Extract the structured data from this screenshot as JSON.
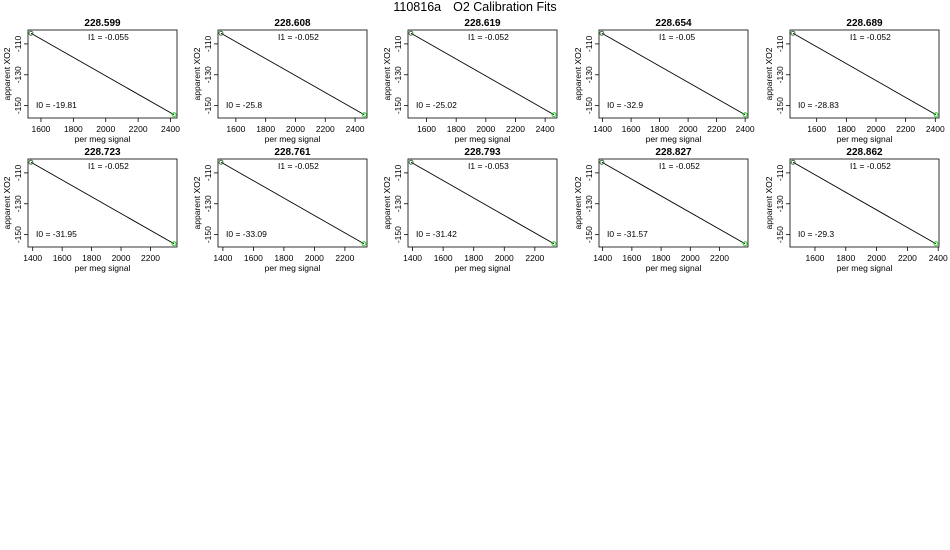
{
  "page": {
    "run_id": "110816a",
    "title": "O2 Calibration Fits"
  },
  "colors": {
    "fit_line": "#000000",
    "point_dark": "#2e6b2e",
    "point_green": "#22cc22",
    "frame": "#000000"
  },
  "chart_data": [
    {
      "type": "scatter",
      "title": "228.599",
      "xlabel": "per meg signal",
      "ylabel": "apparent XO2",
      "xlim": [
        1520,
        2440
      ],
      "ylim": [
        -158,
        -101
      ],
      "xticks": [
        1600,
        1800,
        2000,
        2200,
        2400
      ],
      "yticks": [
        -110,
        -130,
        -150
      ],
      "fit_label": "I1 =  -0.055",
      "intercept_label": "I0 =  -19.81",
      "x": [
        1538,
        2422
      ],
      "y": [
        -103.1,
        -155.9
      ],
      "point_colors": [
        "point_dark",
        "point_green"
      ]
    },
    {
      "type": "scatter",
      "title": "228.608",
      "xlabel": "per meg signal",
      "ylabel": "apparent XO2",
      "xlim": [
        1480,
        2480
      ],
      "ylim": [
        -158,
        -101
      ],
      "xticks": [
        1600,
        1800,
        2000,
        2200,
        2400
      ],
      "yticks": [
        -110,
        -130,
        -150
      ],
      "fit_label": "I1 =  -0.052",
      "intercept_label": "I0 =  -25.8",
      "x": [
        1500,
        2462
      ],
      "y": [
        -103.1,
        -155.9
      ],
      "point_colors": [
        "point_dark",
        "point_green"
      ]
    },
    {
      "type": "scatter",
      "title": "228.619",
      "xlabel": "per meg signal",
      "ylabel": "apparent XO2",
      "xlim": [
        1475,
        2480
      ],
      "ylim": [
        -158,
        -101
      ],
      "xticks": [
        1600,
        1800,
        2000,
        2200,
        2400
      ],
      "yticks": [
        -110,
        -130,
        -150
      ],
      "fit_label": "I1 =  -0.052",
      "intercept_label": "I0 =  -25.02",
      "x": [
        1495,
        2460
      ],
      "y": [
        -103.1,
        -155.9
      ],
      "point_colors": [
        "point_dark",
        "point_green"
      ]
    },
    {
      "type": "scatter",
      "title": "228.654",
      "xlabel": "per meg signal",
      "ylabel": "apparent XO2",
      "xlim": [
        1375,
        2420
      ],
      "ylim": [
        -158,
        -101
      ],
      "xticks": [
        1400,
        1600,
        1800,
        2000,
        2200,
        2400
      ],
      "yticks": [
        -110,
        -130,
        -150
      ],
      "fit_label": "I1 =  -0.05",
      "intercept_label": "I0 =  -32.9",
      "x": [
        1395,
        2400
      ],
      "y": [
        -103.1,
        -155.9
      ],
      "point_colors": [
        "point_dark",
        "point_green"
      ]
    },
    {
      "type": "scatter",
      "title": "228.689",
      "xlabel": "per meg signal",
      "ylabel": "apparent XO2",
      "xlim": [
        1420,
        2425
      ],
      "ylim": [
        -158,
        -101
      ],
      "xticks": [
        1600,
        1800,
        2000,
        2200,
        2400
      ],
      "yticks": [
        -110,
        -130,
        -150
      ],
      "fit_label": "I1 =  -0.052",
      "intercept_label": "I0 =  -28.83",
      "x": [
        1440,
        2405
      ],
      "y": [
        -103.1,
        -155.9
      ],
      "point_colors": [
        "point_dark",
        "point_green"
      ]
    },
    {
      "type": "scatter",
      "title": "228.723",
      "xlabel": "per meg signal",
      "ylabel": "apparent XO2",
      "xlim": [
        1368,
        2380
      ],
      "ylim": [
        -158,
        -101
      ],
      "xticks": [
        1400,
        1600,
        1800,
        2000,
        2200
      ],
      "yticks": [
        -110,
        -130,
        -150
      ],
      "fit_label": "I1 =  -0.052",
      "intercept_label": "I0 =  -31.95",
      "x": [
        1388,
        2360
      ],
      "y": [
        -103.1,
        -155.9
      ],
      "point_colors": [
        "point_dark",
        "point_green"
      ]
    },
    {
      "type": "scatter",
      "title": "228.761",
      "xlabel": "per meg signal",
      "ylabel": "apparent XO2",
      "xlim": [
        1368,
        2345
      ],
      "ylim": [
        -158,
        -101
      ],
      "xticks": [
        1400,
        1600,
        1800,
        2000,
        2200
      ],
      "yticks": [
        -110,
        -130,
        -150
      ],
      "fit_label": "I1 =  -0.052",
      "intercept_label": "I0 =  -33.09",
      "x": [
        1388,
        2325
      ],
      "y": [
        -103.1,
        -155.9
      ],
      "point_colors": [
        "point_dark",
        "point_green"
      ]
    },
    {
      "type": "scatter",
      "title": "228.793",
      "xlabel": "per meg signal",
      "ylabel": "apparent XO2",
      "xlim": [
        1370,
        2345
      ],
      "ylim": [
        -158,
        -101
      ],
      "xticks": [
        1400,
        1600,
        1800,
        2000,
        2200
      ],
      "yticks": [
        -110,
        -130,
        -150
      ],
      "fit_label": "I1 =  -0.053",
      "intercept_label": "I0 =  -31.42",
      "x": [
        1390,
        2325
      ],
      "y": [
        -103.1,
        -155.9
      ],
      "point_colors": [
        "point_dark",
        "point_green"
      ]
    },
    {
      "type": "scatter",
      "title": "228.827",
      "xlabel": "per meg signal",
      "ylabel": "apparent XO2",
      "xlim": [
        1375,
        2395
      ],
      "ylim": [
        -158,
        -101
      ],
      "xticks": [
        1400,
        1600,
        1800,
        2000,
        2200
      ],
      "yticks": [
        -110,
        -130,
        -150
      ],
      "fit_label": "I1 =  -0.052",
      "intercept_label": "I0 =  -31.57",
      "x": [
        1395,
        2375
      ],
      "y": [
        -103.1,
        -155.9
      ],
      "point_colors": [
        "point_dark",
        "point_green"
      ]
    },
    {
      "type": "scatter",
      "title": "228.862",
      "xlabel": "per meg signal",
      "ylabel": "apparent XO2",
      "xlim": [
        1438,
        2405
      ],
      "ylim": [
        -158,
        -101
      ],
      "xticks": [
        1600,
        1800,
        2000,
        2200,
        2400
      ],
      "yticks": [
        -110,
        -130,
        -150
      ],
      "fit_label": "I1 =  -0.052",
      "intercept_label": "I0 =  -29.3",
      "x": [
        1458,
        2385
      ],
      "y": [
        -103.1,
        -155.9
      ],
      "point_colors": [
        "point_dark",
        "point_green"
      ]
    }
  ]
}
